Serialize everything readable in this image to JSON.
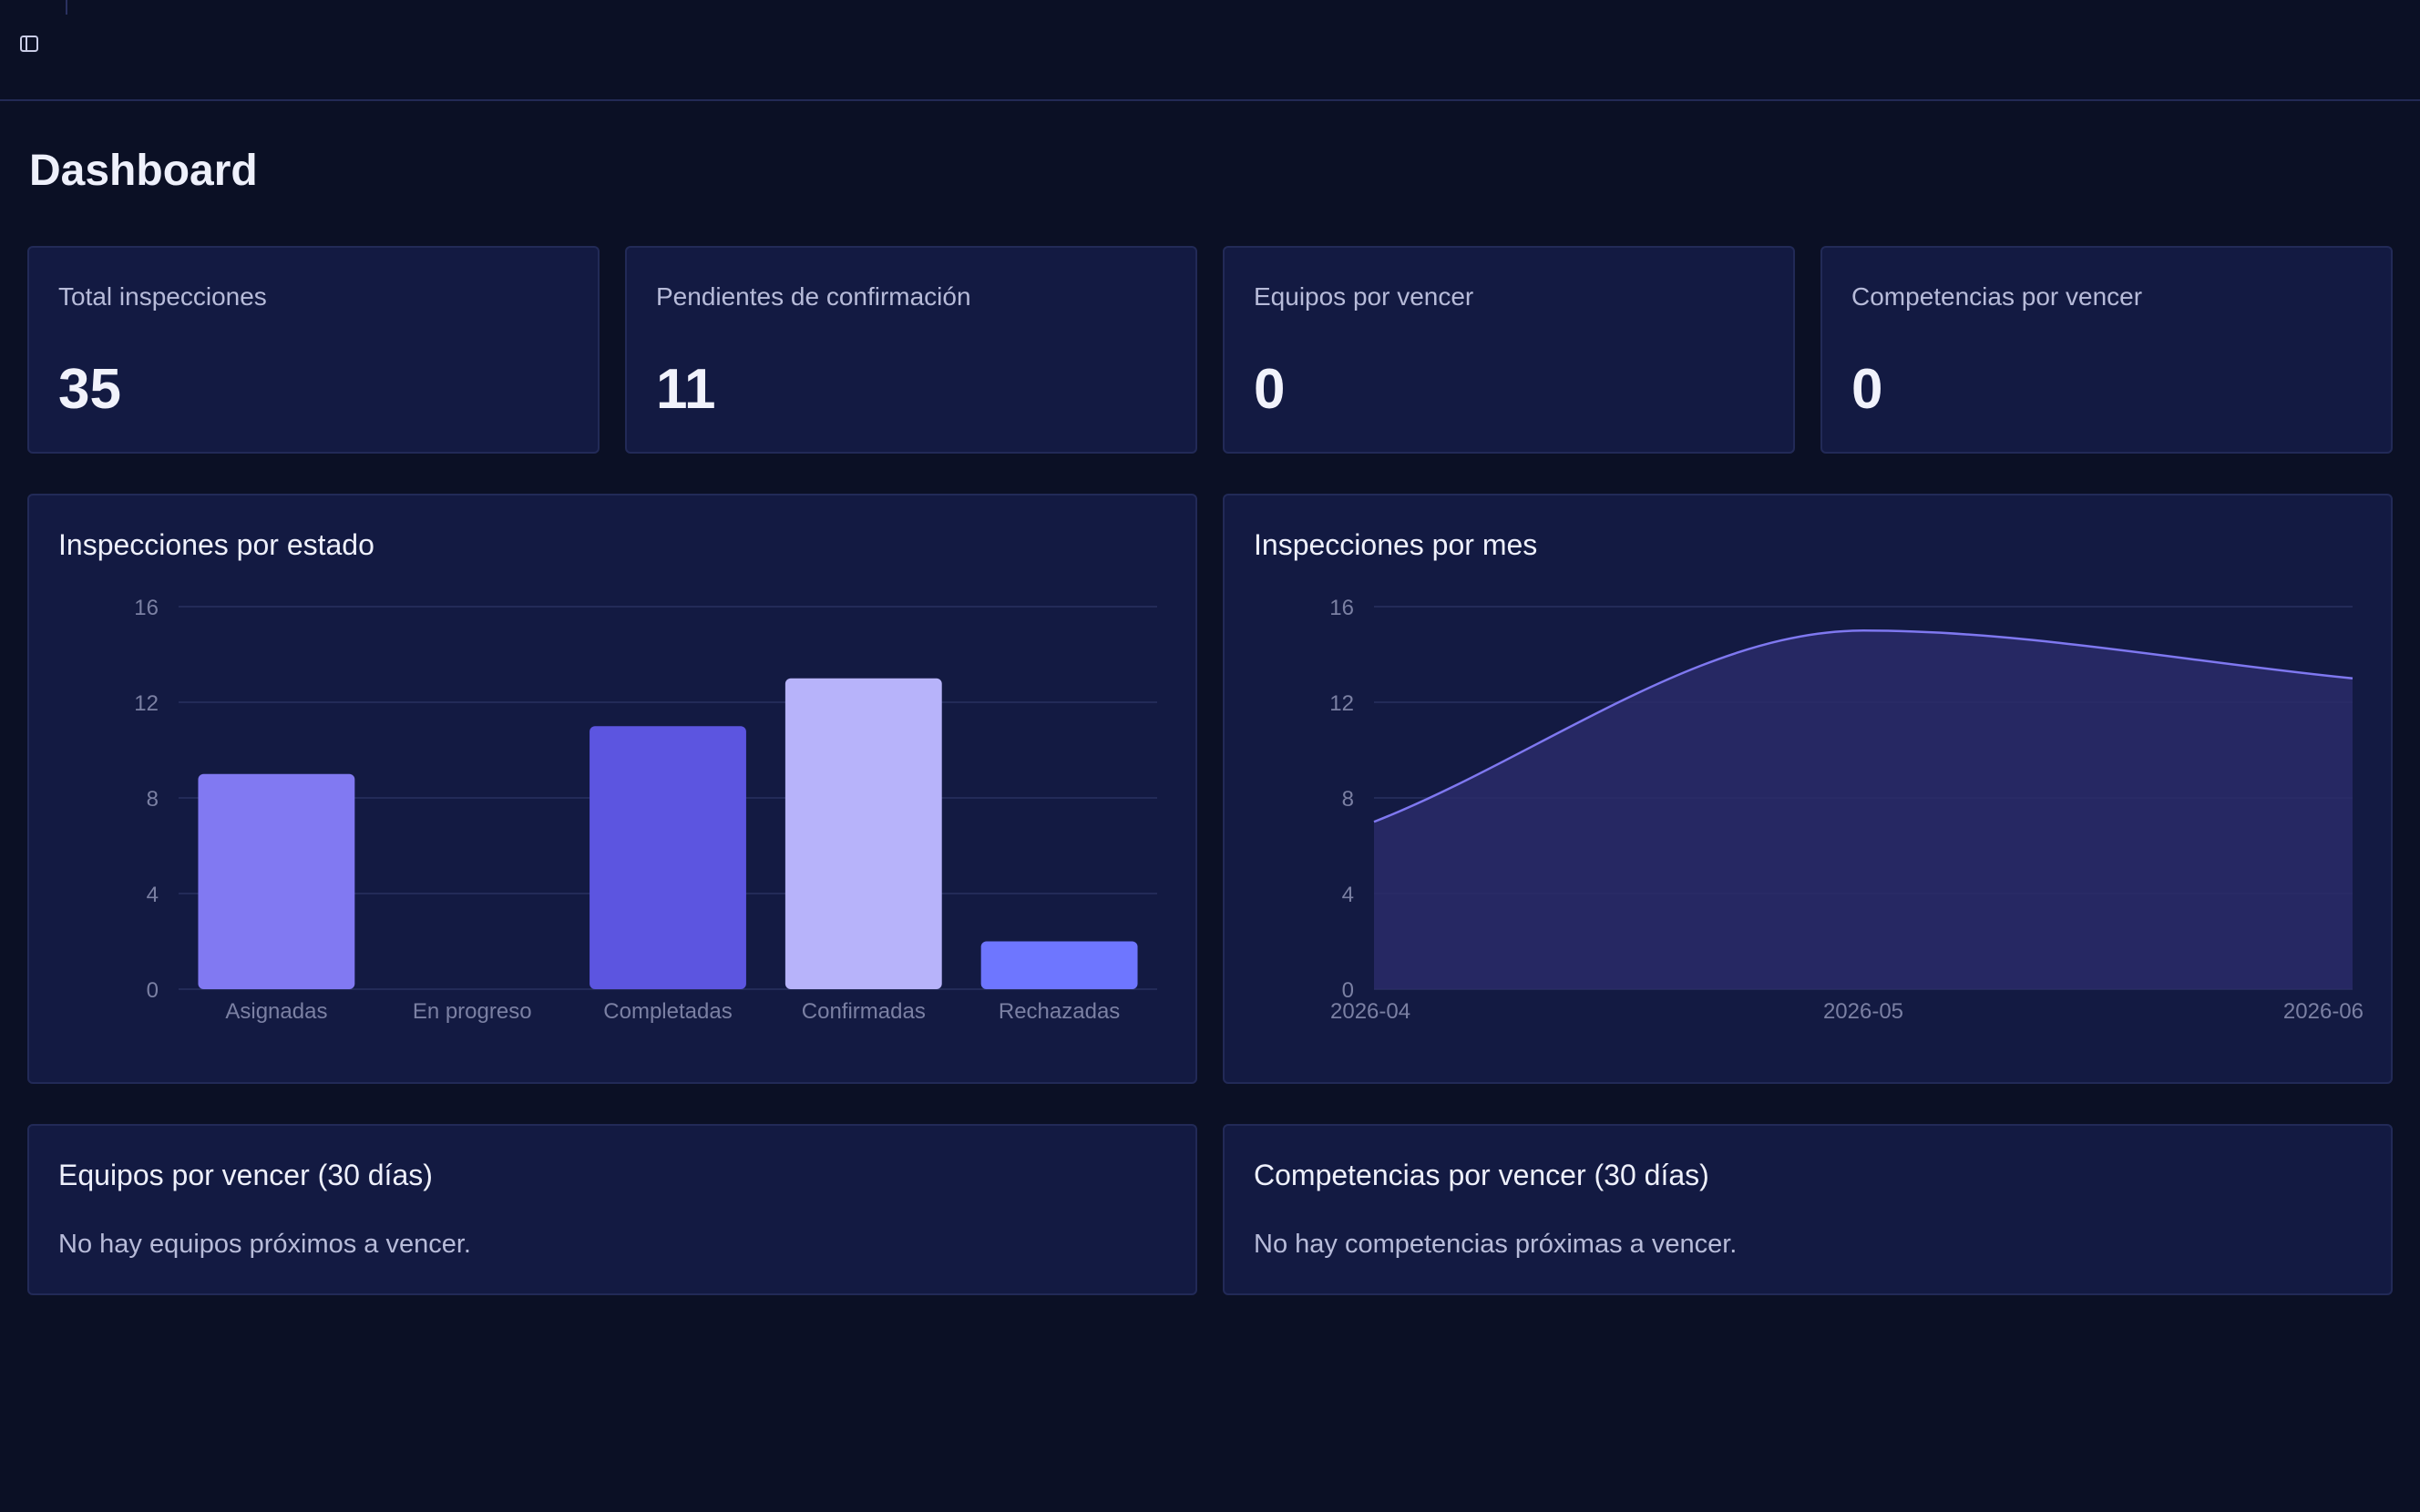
{
  "page": {
    "title": "Dashboard"
  },
  "stats": [
    {
      "label": "Total inspecciones",
      "value": "35"
    },
    {
      "label": "Pendientes de confirmación",
      "value": "11"
    },
    {
      "label": "Equipos por vencer",
      "value": "0"
    },
    {
      "label": "Competencias por vencer",
      "value": "0"
    }
  ],
  "charts": {
    "by_state_title": "Inspecciones por estado",
    "by_month_title": "Inspecciones por mes"
  },
  "chart_data": [
    {
      "type": "bar",
      "title": "Inspecciones por estado",
      "categories": [
        "Asignadas",
        "En progreso",
        "Completadas",
        "Confirmadas",
        "Rechazadas"
      ],
      "values": [
        9,
        0,
        11,
        13,
        2
      ],
      "colors": [
        "#8179f2",
        "#6b63e8",
        "#5c55e0",
        "#b7b3fa",
        "#6e76ff"
      ],
      "yticks": [
        0,
        4,
        8,
        12,
        16
      ],
      "ylim": [
        0,
        16
      ],
      "grid": true
    },
    {
      "type": "area",
      "title": "Inspecciones por mes",
      "x": [
        "2026-04",
        "2026-05",
        "2026-06"
      ],
      "values": [
        7,
        15,
        13
      ],
      "line_color": "#7f78f0",
      "fill_color": "#2a2c68",
      "yticks": [
        0,
        4,
        8,
        12,
        16
      ],
      "ylim": [
        0,
        16
      ],
      "grid": true
    }
  ],
  "expiring": {
    "equipos_title": "Equipos por vencer (30 días)",
    "equipos_empty": "No hay equipos próximos a vencer.",
    "competencias_title": "Competencias por vencer (30 días)",
    "competencias_empty": "No hay competencias próximas a vencer."
  }
}
